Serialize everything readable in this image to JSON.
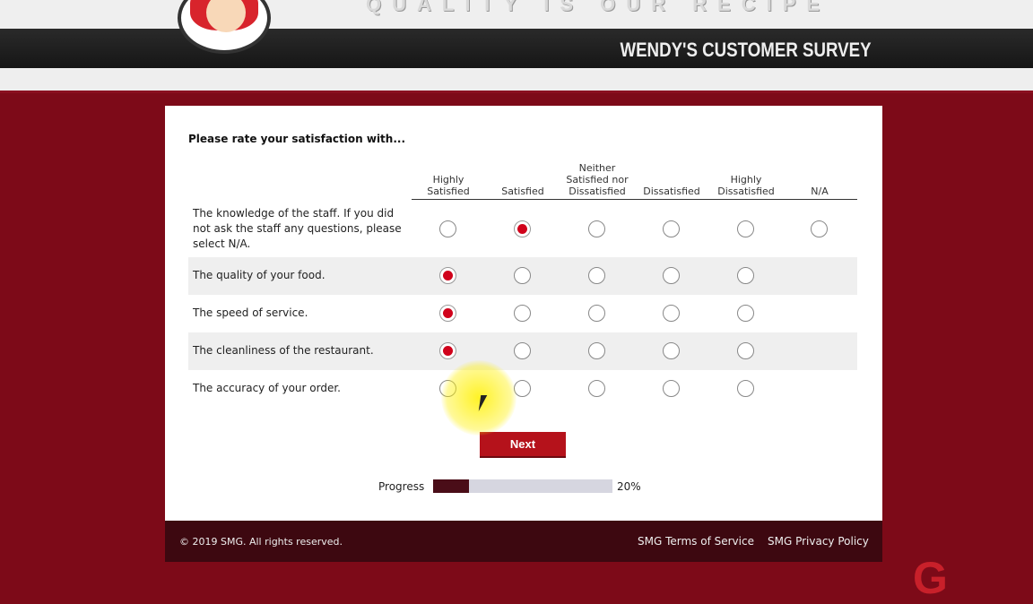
{
  "header": {
    "tagline": "QUALITY IS OUR RECIPE",
    "title": "WENDY'S CUSTOMER SURVEY",
    "logo": "Wendy's"
  },
  "survey": {
    "prompt": "Please rate your satisfaction with...",
    "columns": [
      "Highly Satisfied",
      "Satisfied",
      "Neither Satisfied nor Dissatisfied",
      "Dissatisfied",
      "Highly Dissatisfied",
      "N/A"
    ],
    "rows": [
      {
        "question": "The knowledge of the staff. If you did not ask the staff any questions, please select N/A.",
        "selected": "Satisfied",
        "has_na": true
      },
      {
        "question": "The quality of your food.",
        "selected": "Highly Satisfied",
        "has_na": false
      },
      {
        "question": "The speed of service.",
        "selected": "Highly Satisfied",
        "has_na": false
      },
      {
        "question": "The cleanliness of the restaurant.",
        "selected": "Highly Satisfied",
        "has_na": false
      },
      {
        "question": "The accuracy of your order.",
        "selected": null,
        "has_na": false
      }
    ],
    "next_label": "Next",
    "progress_label": "Progress",
    "progress_percent": 20,
    "progress_text": "20%"
  },
  "footer": {
    "copyright": "© 2019 SMG. All rights reserved.",
    "terms": "SMG Terms of Service",
    "privacy": "SMG Privacy Policy"
  },
  "colors": {
    "accent": "#b5121b",
    "selected": "#d0021b",
    "background": "#7d0a18",
    "footer": "#3d0810"
  }
}
